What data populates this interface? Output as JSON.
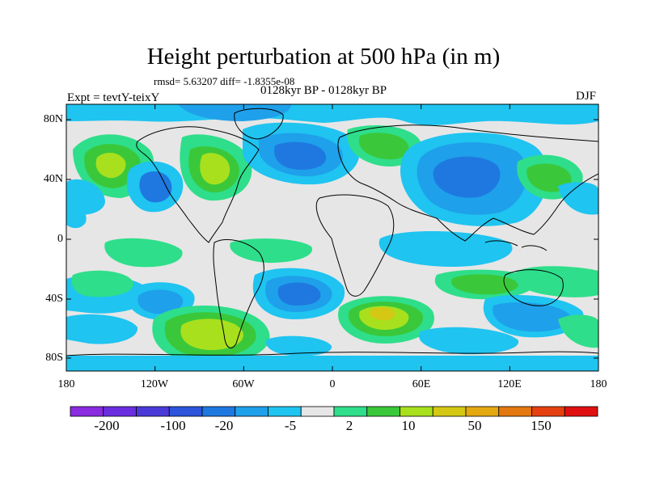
{
  "header": {
    "title": "Height perturbation at 500 hPa (in m)",
    "stats": "rmsd= 5.63207 diff= -1.8355e-08",
    "period": "0128kyr BP - 0128kyr BP",
    "experiment": "Expt = tevtY-teixY",
    "season": "DJF"
  },
  "axes": {
    "lat_labels": [
      "80N",
      "40N",
      "0",
      "40S",
      "80S"
    ],
    "lon_labels": [
      "180",
      "120W",
      "60W",
      "0",
      "60E",
      "120E",
      "180"
    ]
  },
  "colorbar": {
    "labels": [
      "-200",
      "-100",
      "-20",
      "-5",
      "2",
      "10",
      "50",
      "150"
    ],
    "colors": [
      "#8a2be2",
      "#6a2ee0",
      "#4a3ad8",
      "#2c55dc",
      "#1f78e0",
      "#1fa0ea",
      "#1fc4f0",
      "#e6e6e6",
      "#2ede8a",
      "#3ac83a",
      "#a8e01e",
      "#d4c814",
      "#e4a810",
      "#e47810",
      "#e44010",
      "#e01010"
    ]
  },
  "field_colors": {
    "neutral": "#e6e6e6",
    "cyan": "#1fc4f0",
    "light_blue": "#1fa0ea",
    "blue": "#1f78e0",
    "dark_blue": "#2c55dc",
    "green_light": "#2ede8a",
    "green": "#3ac83a",
    "yellow_green": "#a8e01e",
    "yellow": "#d4c814",
    "land_outline": "#000000"
  }
}
